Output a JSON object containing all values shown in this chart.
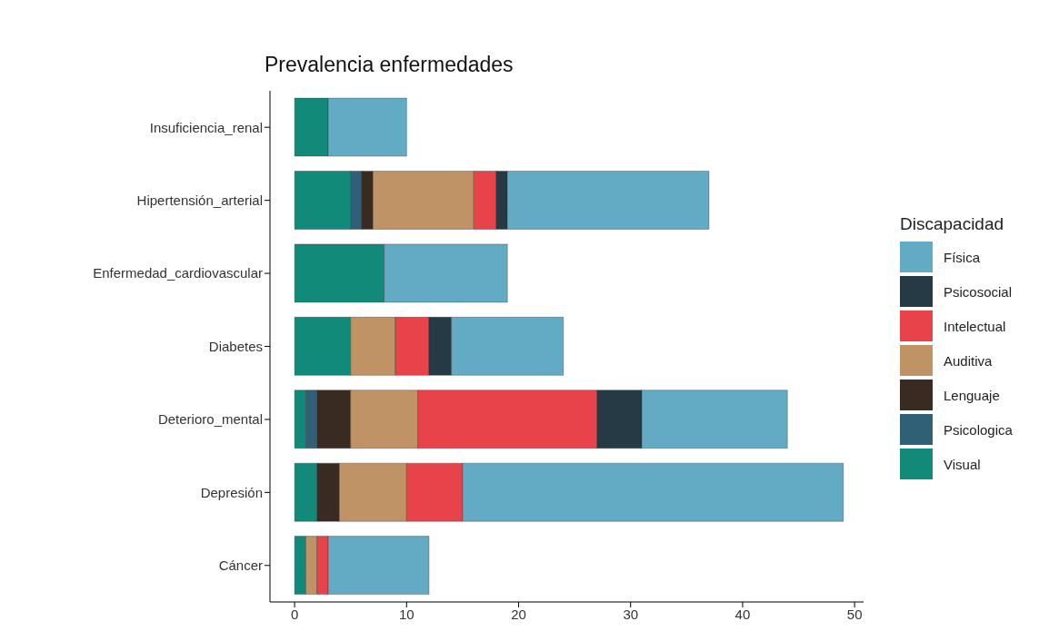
{
  "chart_data": {
    "type": "bar",
    "title": "Prevalencia enfermedades",
    "orientation": "horizontal",
    "stacked": true,
    "legend": "right",
    "legend_title": "Discapacidad",
    "categories": [
      "Insuficiencia_renal",
      "Hipertensión_arterial",
      "Enfermedad_cardiovascular",
      "Diabetes",
      "Deterioro_mental",
      "Depresión",
      "Cáncer"
    ],
    "xlim": [
      -2.2,
      50.8
    ],
    "xticks": [
      0,
      10,
      20,
      30,
      40,
      50
    ],
    "series": [
      {
        "name": "Visual",
        "color": "#128a7a",
        "values": [
          3,
          5,
          8,
          5,
          1,
          2,
          1
        ]
      },
      {
        "name": "Psicologica",
        "color": "#2f6075",
        "values": [
          0,
          1,
          0,
          0,
          1,
          0,
          0
        ]
      },
      {
        "name": "Lenguaje",
        "color": "#3a2b22",
        "values": [
          0,
          1,
          0,
          0,
          3,
          2,
          0
        ]
      },
      {
        "name": "Auditiva",
        "color": "#c09366",
        "values": [
          0,
          9,
          0,
          4,
          6,
          6,
          1
        ]
      },
      {
        "name": "Intelectual",
        "color": "#e8434a",
        "values": [
          0,
          2,
          0,
          3,
          16,
          5,
          1
        ]
      },
      {
        "name": "Psicosocial",
        "color": "#253a45",
        "values": [
          0,
          1,
          0,
          2,
          4,
          0,
          0
        ]
      },
      {
        "name": "Física",
        "color": "#63abc5",
        "values": [
          7,
          18,
          11,
          10,
          13,
          34,
          9
        ]
      }
    ]
  }
}
